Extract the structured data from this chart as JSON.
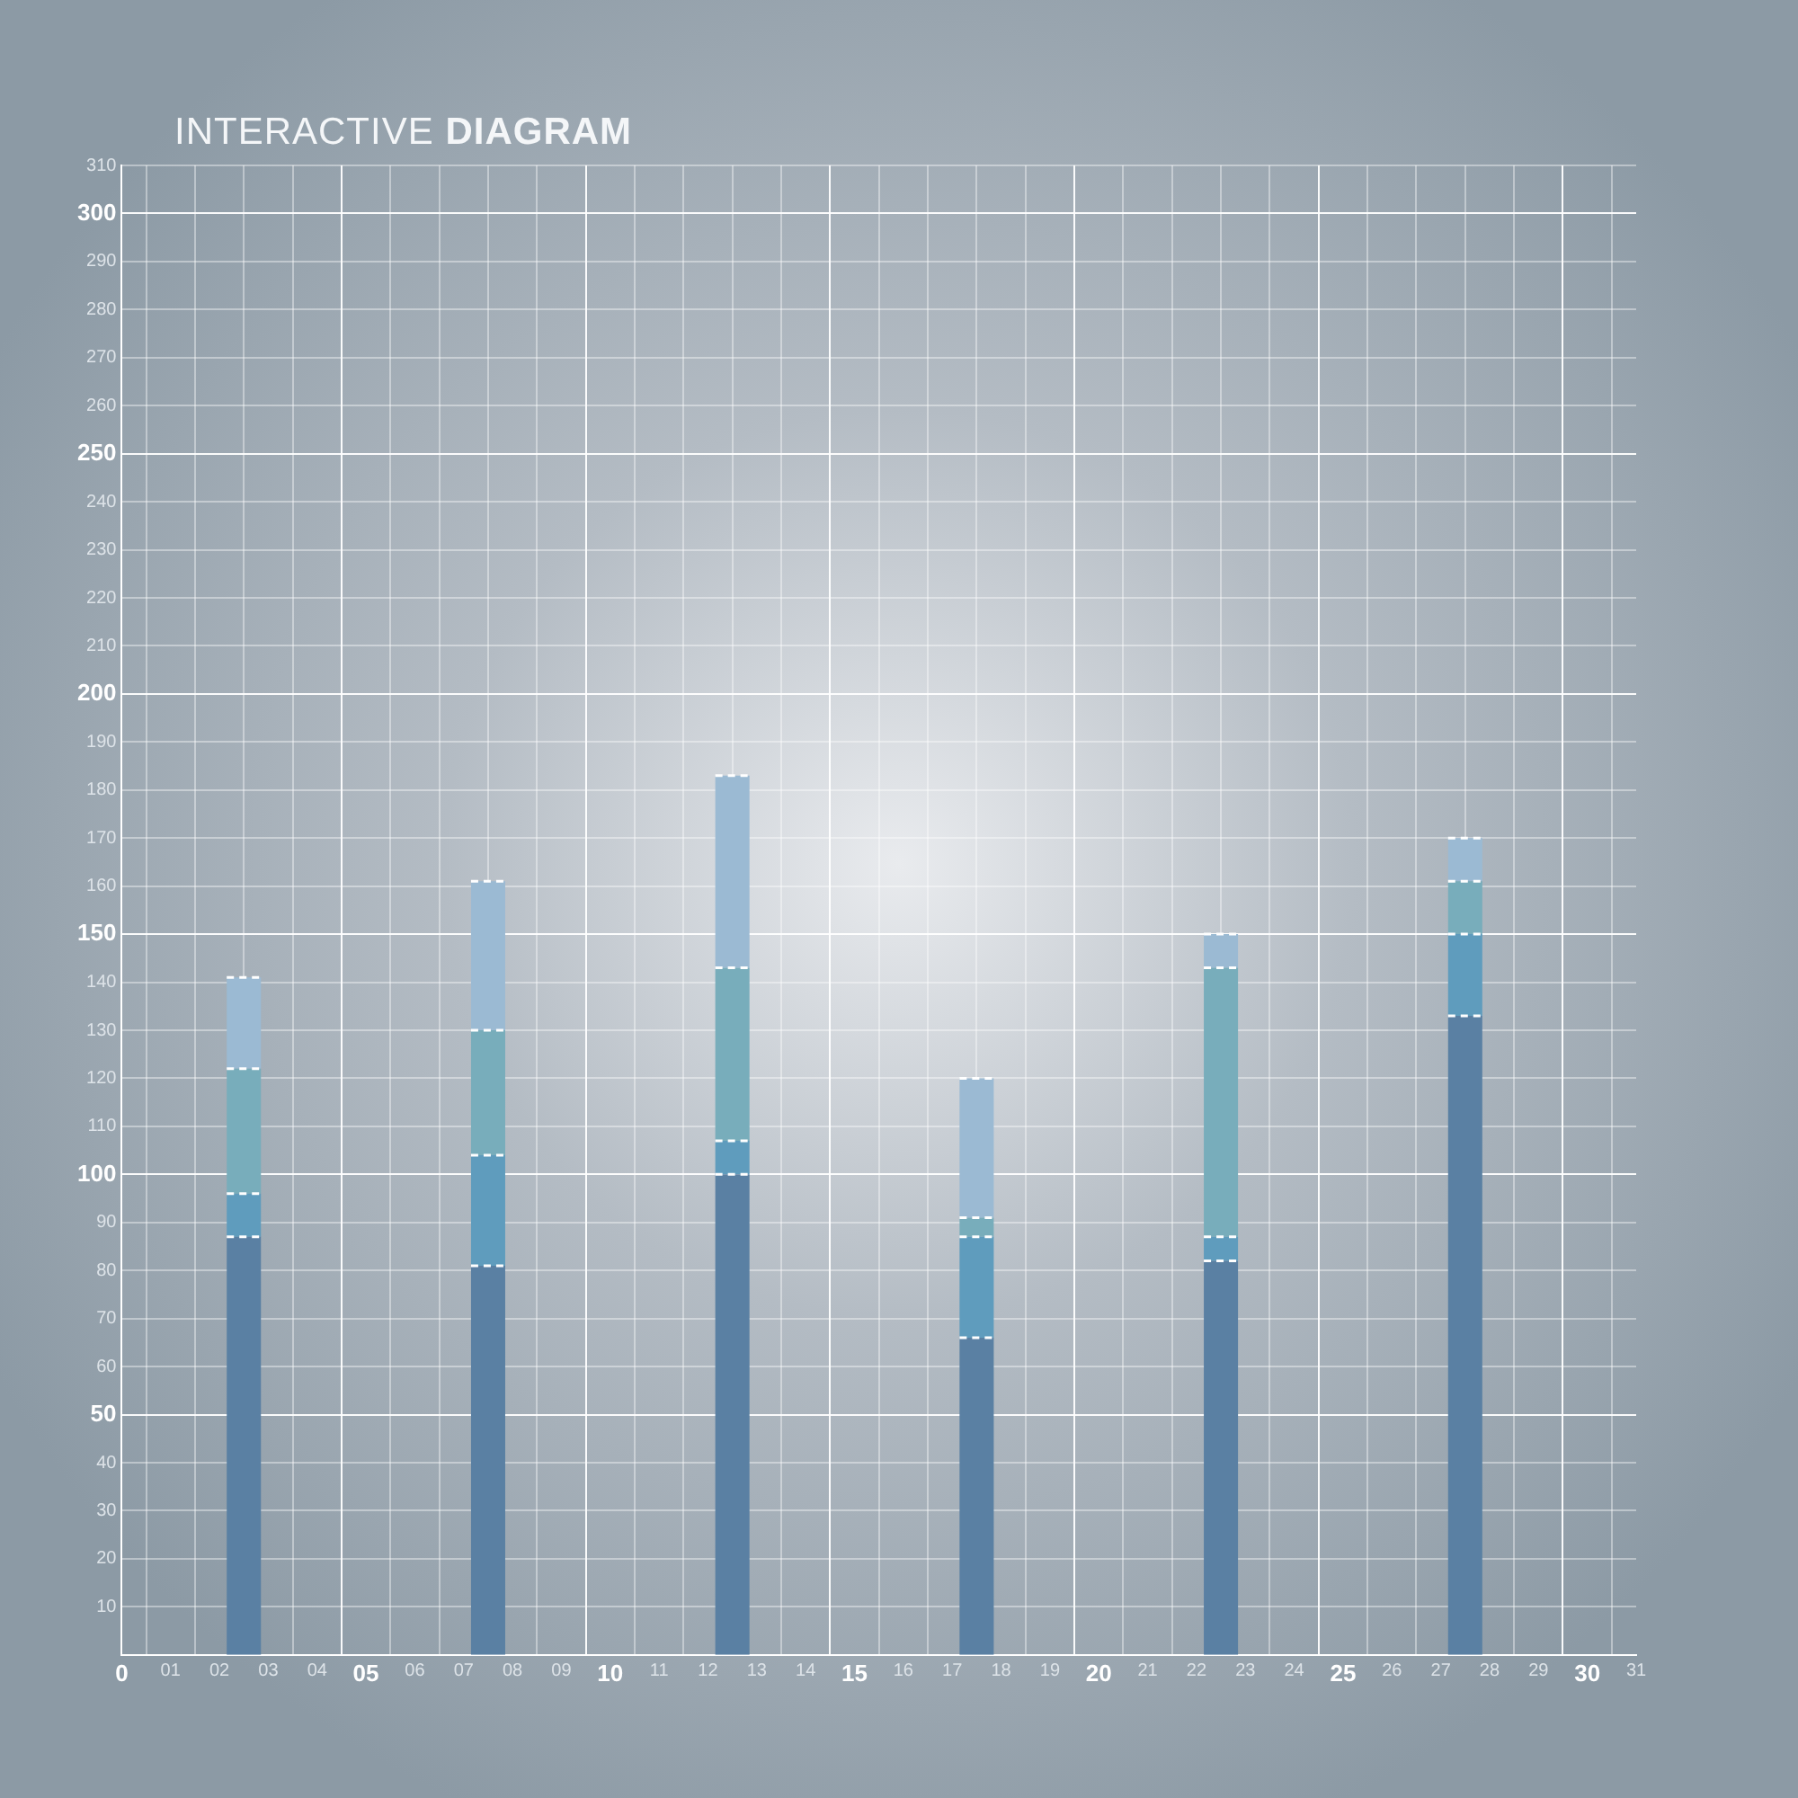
{
  "chart_data": {
    "type": "bar",
    "title": "INTERACTIVE DIAGRAM",
    "stacked": true,
    "legend": false,
    "grid": true,
    "x": [
      2.5,
      7.5,
      12.5,
      17.5,
      22.5,
      27.5
    ],
    "series": [
      {
        "color": "#5a80a3",
        "values": [
          87,
          81,
          100,
          66,
          82,
          133
        ]
      },
      {
        "color": "#5f9cbd",
        "values": [
          9,
          23,
          7,
          21,
          5,
          17
        ]
      },
      {
        "color": "#78adbb",
        "values": [
          26,
          26,
          36,
          4,
          56,
          11
        ]
      },
      {
        "color": "#9bbad3",
        "values": [
          19,
          31,
          40,
          29,
          7,
          9
        ]
      }
    ],
    "xlim": [
      0,
      31
    ],
    "xticks": [
      0,
      {
        "value": 1,
        "label": "01"
      },
      {
        "value": 2,
        "label": "02"
      },
      {
        "value": 3,
        "label": "03"
      },
      {
        "value": 4,
        "label": "04"
      },
      {
        "value": 5,
        "label": "05"
      },
      {
        "value": 6,
        "label": "06"
      },
      {
        "value": 7,
        "label": "07"
      },
      {
        "value": 8,
        "label": "08"
      },
      {
        "value": 9,
        "label": "09"
      },
      10,
      11,
      12,
      13,
      14,
      15,
      16,
      17,
      18,
      19,
      20,
      21,
      22,
      23,
      24,
      25,
      26,
      27,
      28,
      29,
      30,
      31
    ],
    "ylim": [
      0,
      310
    ],
    "yticks": [
      10,
      20,
      30,
      40,
      50,
      60,
      70,
      80,
      90,
      100,
      110,
      120,
      130,
      140,
      150,
      160,
      170,
      180,
      190,
      200,
      210,
      220,
      230,
      240,
      250,
      260,
      270,
      280,
      290,
      300,
      310
    ]
  }
}
